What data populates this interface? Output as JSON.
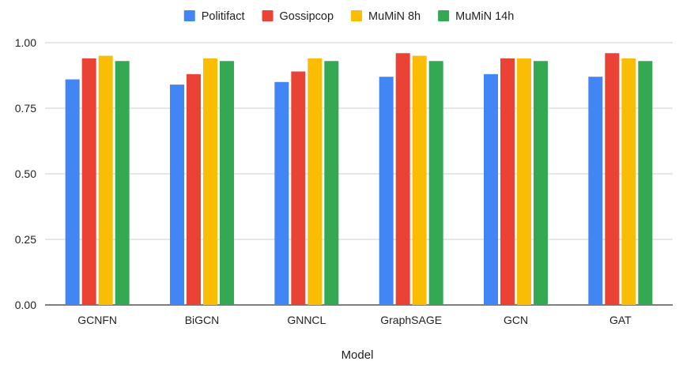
{
  "chart_data": {
    "type": "bar",
    "title": "",
    "xlabel": "Model",
    "ylabel": "",
    "ylim": [
      0,
      1
    ],
    "yticks": [
      "0.00",
      "0.25",
      "0.50",
      "0.75",
      "1.00"
    ],
    "grid": true,
    "legend_position": "top",
    "categories": [
      "GCNFN",
      "BiGCN",
      "GNNCL",
      "GraphSAGE",
      "GCN",
      "GAT"
    ],
    "series": [
      {
        "name": "Politifact",
        "color": "#4285F4",
        "values": [
          0.86,
          0.84,
          0.85,
          0.87,
          0.88,
          0.87
        ]
      },
      {
        "name": "Gossipcop",
        "color": "#EA4335",
        "values": [
          0.94,
          0.88,
          0.89,
          0.96,
          0.94,
          0.96
        ]
      },
      {
        "name": "MuMiN 8h",
        "color": "#FBBC04",
        "values": [
          0.95,
          0.94,
          0.94,
          0.95,
          0.94,
          0.94
        ]
      },
      {
        "name": "MuMiN 14h",
        "color": "#34A853",
        "values": [
          0.93,
          0.93,
          0.93,
          0.93,
          0.93,
          0.93
        ]
      }
    ]
  }
}
